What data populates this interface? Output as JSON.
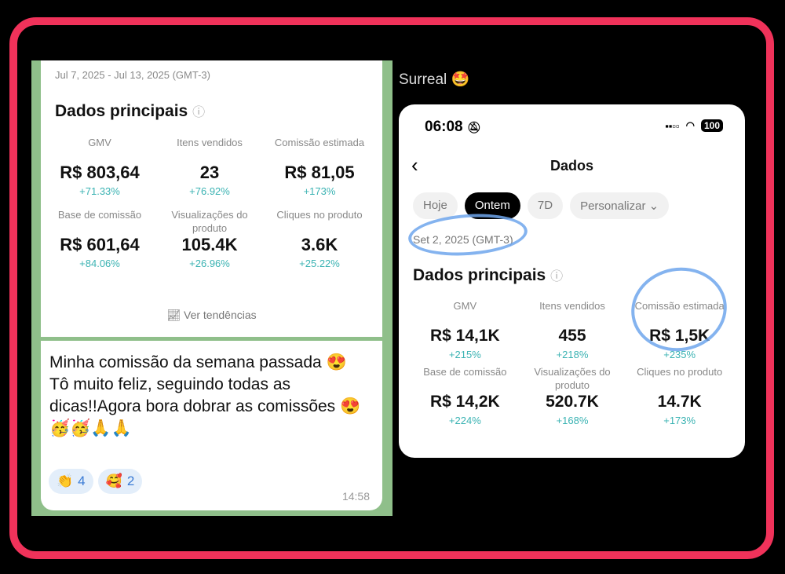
{
  "left": {
    "date_range": "Jul 7, 2025 - Jul 13, 2025 (GMT-3)",
    "title": "Dados principais",
    "metrics": [
      {
        "label": "GMV",
        "value": "R$ 803,64",
        "change": "+71.33%"
      },
      {
        "label": "Itens vendidos",
        "value": "23",
        "change": "+76.92%"
      },
      {
        "label": "Comissão estimada",
        "value": "R$ 81,05",
        "change": "+173%"
      },
      {
        "label": "Base de comissão",
        "value": "R$ 601,64",
        "change": "+84.06%"
      },
      {
        "label": "Visualizações do produto",
        "value": "105.4K",
        "change": "+26.96%"
      },
      {
        "label": "Cliques no produto",
        "value": "3.6K",
        "change": "+25.22%"
      }
    ],
    "trends_label": "Ver tendências",
    "message": "Minha comissão da semana passada 😍\nTô muito feliz, seguindo todas as dicas!!Agora bora dobrar as comissões 😍🥳🥳🙏🙏",
    "reactions": [
      {
        "emoji": "👏",
        "count": "4"
      },
      {
        "emoji": "🥰",
        "count": "2"
      }
    ],
    "time": "14:58"
  },
  "caption": "Surreal 🤩",
  "phone": {
    "clock": "06:08",
    "battery": "100",
    "title": "Dados",
    "tabs": [
      {
        "label": "Hoje"
      },
      {
        "label": "Ontem",
        "active": true
      },
      {
        "label": "7D"
      },
      {
        "label": "Personalizar ⌄"
      }
    ],
    "date": "Set 2, 2025 (GMT-3)",
    "section_title": "Dados principais",
    "metrics": [
      {
        "label": "GMV",
        "value": "R$ 14,1K",
        "change": "+215%"
      },
      {
        "label": "Itens vendidos",
        "value": "455",
        "change": "+218%"
      },
      {
        "label": "Comissão estimada",
        "value": "R$ 1,5K",
        "change": "+235%"
      },
      {
        "label": "Base de comissão",
        "value": "R$ 14,2K",
        "change": "+224%"
      },
      {
        "label": "Visualizações do produto",
        "value": "520.7K",
        "change": "+168%"
      },
      {
        "label": "Cliques no produto",
        "value": "14.7K",
        "change": "+173%"
      }
    ]
  },
  "colors": {
    "frame": "#f0325a",
    "positive": "#3bb3b3",
    "highlight": "#6fa6ec"
  }
}
